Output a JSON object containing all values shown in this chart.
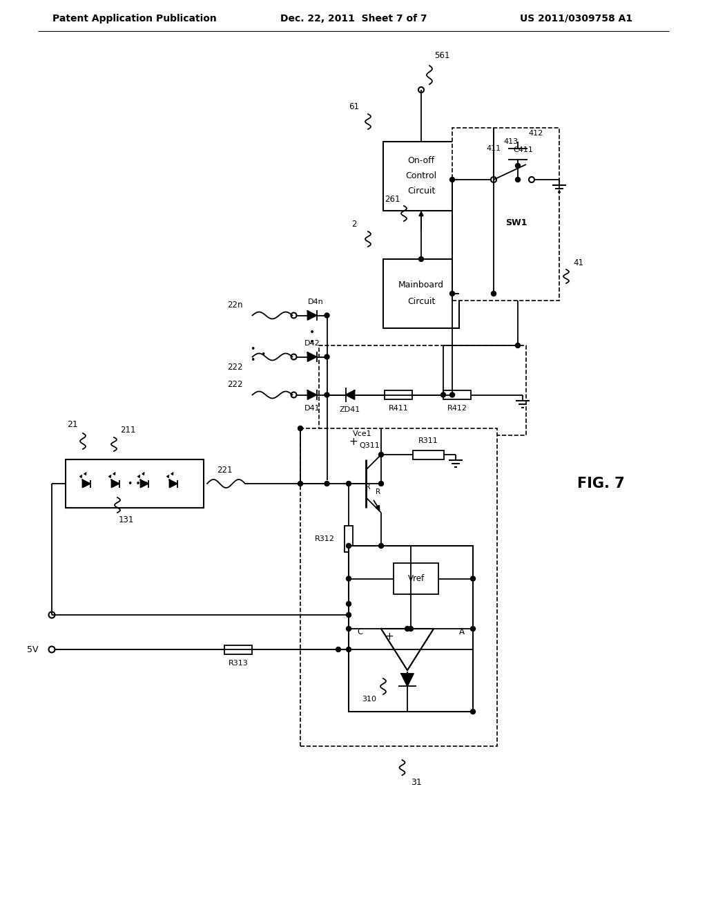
{
  "bg_color": "#ffffff",
  "header_left": "Patent Application Publication",
  "header_mid": "Dec. 22, 2011  Sheet 7 of 7",
  "header_right": "US 2011/0309758 A1"
}
